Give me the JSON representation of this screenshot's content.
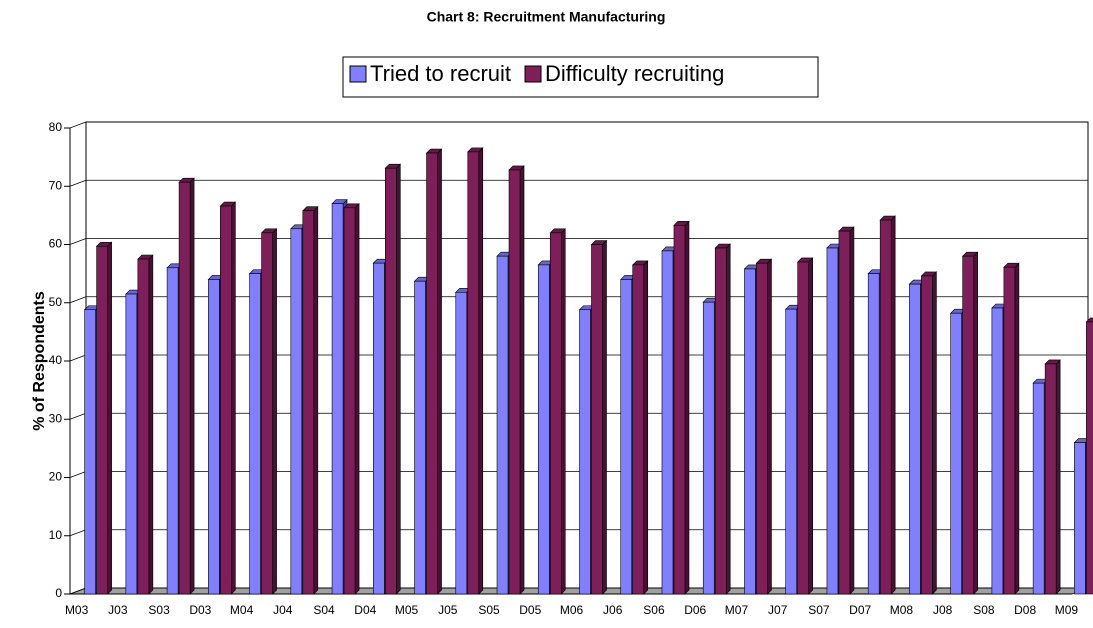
{
  "chart_data": {
    "type": "bar",
    "title": "Chart 8: Recruitment Manufacturing",
    "y_label": "% of Respondents",
    "categories": [
      "M03",
      "J03",
      "S03",
      "D03",
      "M04",
      "J04",
      "S04",
      "D04",
      "M05",
      "J05",
      "S05",
      "D05",
      "M06",
      "J06",
      "S06",
      "D06",
      "M07",
      "J07",
      "S07",
      "D07",
      "M08",
      "J08",
      "S08",
      "D08",
      "M09"
    ],
    "series": [
      {
        "name": "Tried to recruit",
        "color": "#8080ff",
        "values": [
          48.8,
          51.5,
          56,
          54,
          55,
          62.7,
          67,
          56.8,
          53.7,
          51.8,
          58,
          56.5,
          48.8,
          54,
          58.9,
          50.1,
          55.8,
          48.9,
          59.4,
          55,
          53.2,
          48.2,
          49.1,
          36.2,
          26
        ]
      },
      {
        "name": "Difficulty recruiting",
        "color": "#7f1f5a",
        "values": [
          59.7,
          57.5,
          70.7,
          66.6,
          62,
          65.8,
          66.3,
          73.1,
          75.7,
          75.9,
          72.8,
          62,
          60,
          56.5,
          63.3,
          59.4,
          56.8,
          57,
          62.3,
          64.2,
          54.6,
          58,
          56.1,
          39.5,
          46.7
        ]
      }
    ],
    "ylim": [
      0,
      80
    ],
    "yticks": [
      0,
      10,
      20,
      30,
      40,
      50,
      60,
      70,
      80
    ],
    "grid": true,
    "legend": "top"
  }
}
